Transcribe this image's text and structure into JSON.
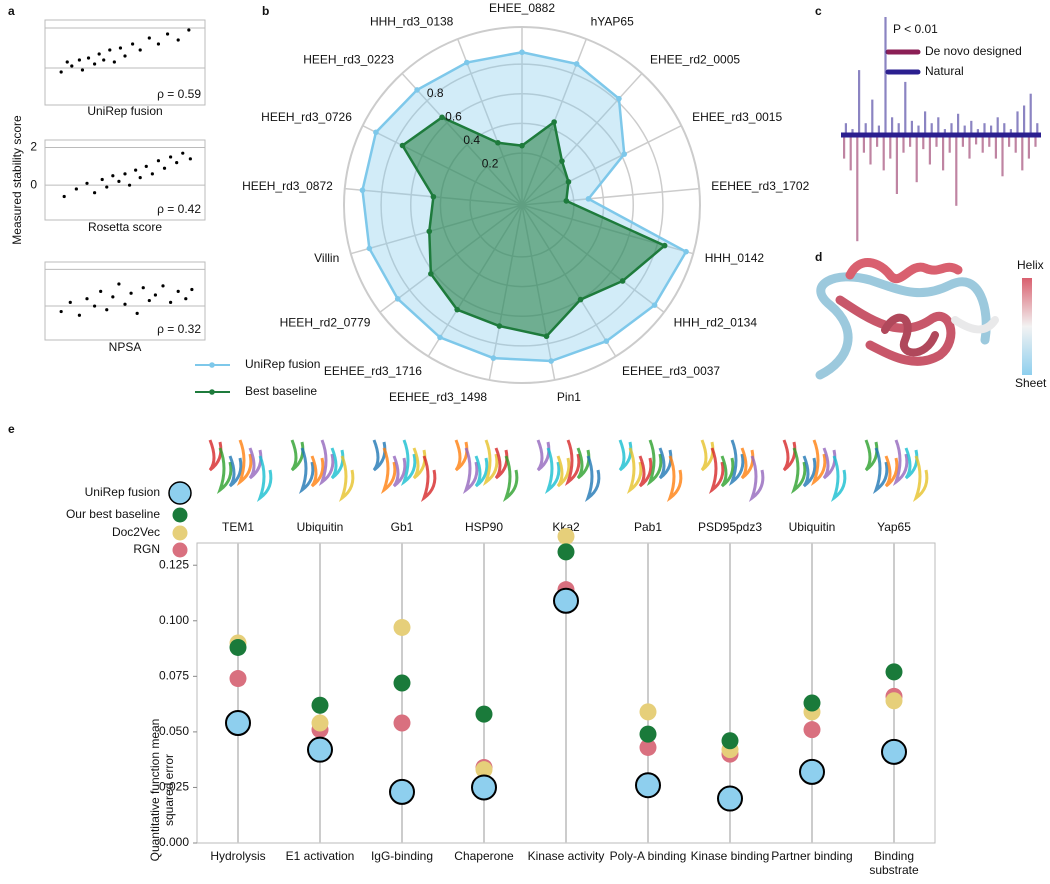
{
  "panel_labels": [
    "a",
    "b",
    "c",
    "d",
    "e"
  ],
  "panel_a_ylabel": "Measured stability score",
  "chart_data": [
    {
      "type": "scatter",
      "xlabel": "UniRep fusion",
      "annotation": "ρ = 0.59",
      "color": "#000000",
      "x": [
        0.08,
        0.12,
        0.15,
        0.2,
        0.22,
        0.26,
        0.3,
        0.33,
        0.36,
        0.4,
        0.43,
        0.47,
        0.5,
        0.55,
        0.6,
        0.66,
        0.72,
        0.78,
        0.85,
        0.92
      ],
      "y": [
        -0.2,
        0.3,
        0.1,
        0.4,
        -0.1,
        0.5,
        0.2,
        0.7,
        0.4,
        0.9,
        0.3,
        1.0,
        0.6,
        1.2,
        0.9,
        1.5,
        1.2,
        1.7,
        1.4,
        1.9
      ],
      "xlim": [
        0,
        1
      ],
      "ylim": [
        -1.85,
        2.4
      ],
      "yticks": [
        0,
        2
      ],
      "tick_labels": false
    },
    {
      "type": "scatter",
      "xlabel": "Rosetta score",
      "annotation": "ρ = 0.42",
      "color": "#000000",
      "x": [
        0.1,
        0.18,
        0.25,
        0.3,
        0.35,
        0.38,
        0.42,
        0.46,
        0.5,
        0.53,
        0.57,
        0.6,
        0.64,
        0.68,
        0.72,
        0.76,
        0.8,
        0.84,
        0.88,
        0.93
      ],
      "y": [
        -0.6,
        -0.2,
        0.1,
        -0.4,
        0.3,
        -0.1,
        0.5,
        0.2,
        0.6,
        0.0,
        0.8,
        0.4,
        1.0,
        0.6,
        1.3,
        0.9,
        1.5,
        1.2,
        1.7,
        1.4
      ],
      "xlim": [
        0,
        1
      ],
      "ylim": [
        -1.85,
        2.4
      ],
      "yticks": [
        0,
        2
      ],
      "tick_labels": true
    },
    {
      "type": "scatter",
      "xlabel": "NPSA",
      "annotation": "ρ = 0.32",
      "color": "#000000",
      "x": [
        0.08,
        0.14,
        0.2,
        0.25,
        0.3,
        0.34,
        0.38,
        0.42,
        0.46,
        0.5,
        0.54,
        0.58,
        0.62,
        0.66,
        0.7,
        0.75,
        0.8,
        0.85,
        0.9,
        0.94
      ],
      "y": [
        -0.3,
        0.2,
        -0.5,
        0.4,
        0.0,
        0.8,
        -0.2,
        0.5,
        1.2,
        0.1,
        0.7,
        -0.4,
        1.0,
        0.3,
        0.6,
        1.1,
        0.2,
        0.8,
        0.4,
        0.9
      ],
      "xlim": [
        0,
        1
      ],
      "ylim": [
        -1.85,
        2.4
      ],
      "yticks": [
        0,
        2
      ],
      "tick_labels": false
    },
    {
      "type": "radar",
      "categories": [
        "EHEE_0882",
        "hYAP65",
        "EHEE_rd2_0005",
        "EHEE_rd3_0015",
        "EEHEE_rd3_1702",
        "HHH_0142",
        "HHH_rd2_0134",
        "EEHEE_rd3_0037",
        "Pin1",
        "EEHEE_rd3_1498",
        "EEHEE_rd3_1716",
        "HEEH_rd2_0779",
        "Villin",
        "HEEH_rd3_0872",
        "HEEH_rd3_0726",
        "HEEH_rd3_0223",
        "HHH_rd3_0138"
      ],
      "category_colors": [
        "#8a1a4f",
        "#1f2a8a",
        "#8a1a4f",
        "#8a1a4f",
        "#8a1a4f",
        "#8a1a4f",
        "#8a1a4f",
        "#8a1a4f",
        "#1f2a8a",
        "#8a1a4f",
        "#8a1a4f",
        "#8a1a4f",
        "#1f2a8a",
        "#8a1a4f",
        "#8a1a4f",
        "#8a1a4f",
        "#8a1a4f"
      ],
      "series": [
        {
          "name": "UniRep fusion",
          "color": "#7ec8ea",
          "values": [
            0.88,
            0.87,
            0.82,
            0.62,
            0.3,
            1.0,
            0.97,
            0.93,
            0.92,
            0.9,
            0.9,
            0.9,
            0.92,
            0.93,
            0.95,
            0.9,
            0.88
          ]
        },
        {
          "name": "Best baseline",
          "color": "#1e7b3c",
          "values": [
            0.25,
            0.45,
            0.25,
            0.2,
            0.15,
            0.85,
            0.7,
            0.6,
            0.75,
            0.68,
            0.68,
            0.62,
            0.5,
            0.45,
            0.75,
            0.65,
            0.3
          ]
        }
      ],
      "rlim": [
        -0.15,
        1.05
      ],
      "rticks": [
        0.2,
        0.4,
        0.6,
        0.8
      ]
    },
    {
      "type": "bar",
      "annotation": "P < 0.01",
      "ylim": [
        -1,
        1
      ],
      "series": [
        {
          "name": "De novo designed",
          "color": "#8b1f55",
          "values": [
            -0.2,
            -0.3,
            -0.9,
            -0.15,
            -0.25,
            -0.1,
            -0.3,
            -0.2,
            -0.5,
            -0.15,
            -0.1,
            -0.4,
            -0.12,
            -0.25,
            -0.1,
            -0.3,
            -0.15,
            -0.6,
            -0.1,
            -0.2,
            -0.08,
            -0.15,
            -0.1,
            -0.2,
            -0.35,
            -0.1,
            -0.15,
            -0.3,
            -0.2,
            -0.1
          ]
        },
        {
          "name": "Natural",
          "color": "#2b1f8f",
          "values": [
            0.1,
            0.05,
            0.55,
            0.1,
            0.3,
            0.08,
            1.0,
            0.15,
            0.1,
            0.45,
            0.12,
            0.08,
            0.2,
            0.1,
            0.15,
            0.05,
            0.1,
            0.18,
            0.08,
            0.12,
            0.05,
            0.1,
            0.08,
            0.15,
            0.1,
            0.05,
            0.2,
            0.25,
            0.35,
            0.1
          ]
        }
      ]
    },
    {
      "type": "dot",
      "categories": [
        "Hydrolysis",
        "E1 activation",
        "IgG-binding",
        "Chaperone",
        "Kinase activity",
        "Poly-A binding",
        "Kinase binding",
        "Partner binding",
        "Binding substrate"
      ],
      "proteins": [
        "TEM1",
        "Ubiquitin",
        "Gb1",
        "HSP90",
        "Kka2",
        "Pab1",
        "PSD95pdz3",
        "Ubiquitin",
        "Yap65"
      ],
      "ylabel": "Quantitative function mean squared error",
      "ylim": [
        0,
        0.135
      ],
      "yticks": [
        {
          "value": 0,
          "label": "0.000"
        },
        0.025,
        {
          "value": 0.05,
          "label": "0.050"
        },
        0.075,
        {
          "value": 0.1,
          "label": "0.100"
        },
        0.125
      ],
      "series": [
        {
          "name": "RGN",
          "color": "#d9707f",
          "values": [
            0.074,
            0.051,
            0.054,
            0.034,
            0.114,
            0.043,
            0.04,
            0.051,
            0.066
          ]
        },
        {
          "name": "Doc2Vec",
          "color": "#e6cf7a",
          "values": [
            0.09,
            0.054,
            0.097,
            0.033,
            0.138,
            0.059,
            0.042,
            0.059,
            0.064
          ]
        },
        {
          "name": "Our best baseline",
          "color": "#1a7a3a",
          "values": [
            0.088,
            0.062,
            0.072,
            0.058,
            0.131,
            0.049,
            0.046,
            0.063,
            0.077
          ]
        },
        {
          "name": "UniRep fusion",
          "color": "#8ecfee",
          "values": [
            0.054,
            0.042,
            0.023,
            0.025,
            0.109,
            0.026,
            0.02,
            0.032,
            0.041
          ]
        }
      ]
    }
  ],
  "structure_panel": {
    "colorbar_labels": [
      "Helix",
      "Sheet"
    ],
    "colors": [
      "#d9606f",
      "#8ecfee"
    ]
  }
}
